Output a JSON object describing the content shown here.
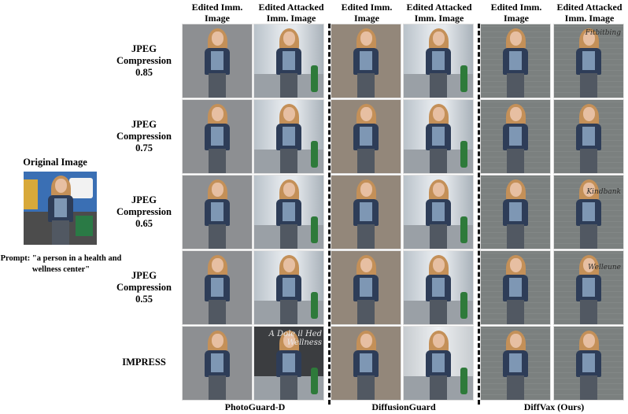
{
  "original": {
    "title": "Original Image",
    "prompt": "Prompt: \"a person in a health and wellness center\""
  },
  "column_headers": [
    "Edited Imm.\nImage",
    "Edited Attacked\nImm. Image",
    "Edited Imm.\nImage",
    "Edited Attacked\nImm. Image",
    "Edited Imm.\nImage",
    "Edited Attacked\nImm. Image"
  ],
  "row_labels": [
    "JPEG\nCompression\n0.85",
    "JPEG\nCompression\n0.75",
    "JPEG\nCompression\n0.65",
    "JPEG\nCompression\n0.55",
    "IMPRESS"
  ],
  "methods": [
    "PhotoGuard-D",
    "DiffusionGuard",
    "DiffVax (Ours)"
  ],
  "artifact_text": {
    "impress_photoguard": "A Dole il Hed\nWellness",
    "diffvax_r1": "Fitbitbing",
    "diffvax_r3": "Kindbank",
    "diffvax_r4": "Welleune"
  },
  "colors": {
    "photoguard_bg": "#8d8f92",
    "hallway_bg": "#cfd6dc",
    "diffusionguard_bg": "#93877a",
    "diffvax_bg": "#7b807f"
  }
}
